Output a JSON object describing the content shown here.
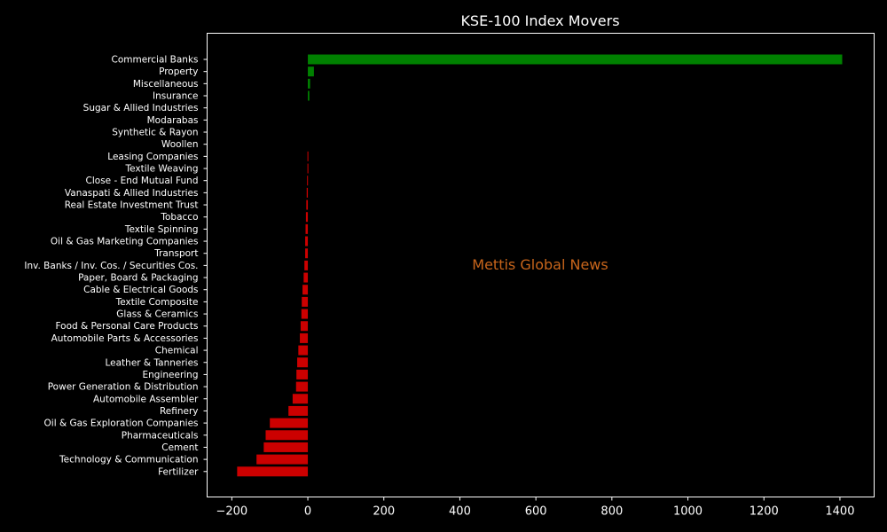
{
  "chart_data": {
    "type": "bar",
    "orientation": "horizontal",
    "title": "KSE-100 Index Movers",
    "watermark": "Mettis Global News",
    "xlabel": "",
    "ylabel": "",
    "xlim": [
      -265,
      1490
    ],
    "xticks": [
      -200,
      0,
      200,
      400,
      600,
      800,
      1000,
      1200,
      1400
    ],
    "xtick_labels": [
      "−200",
      "0",
      "200",
      "400",
      "600",
      "800",
      "1000",
      "1200",
      "1400"
    ],
    "grid": false,
    "legend": "none",
    "colors": {
      "positive": "#008000",
      "negative": "#cc0000",
      "background": "#000000",
      "text": "#ffffff",
      "watermark": "#c8651b"
    },
    "categories": [
      "Commercial Banks",
      "Property",
      "Miscellaneous",
      "Insurance",
      "Sugar & Allied Industries",
      "Modarabas",
      "Synthetic & Rayon",
      "Woollen",
      "Leasing Companies",
      "Textile Weaving",
      "Close - End Mutual Fund",
      "Vanaspati & Allied Industries",
      "Real Estate Investment Trust",
      "Tobacco",
      "Textile Spinning",
      "Oil & Gas Marketing Companies",
      "Transport",
      "Inv. Banks / Inv. Cos. / Securities Cos.",
      "Paper, Board & Packaging",
      "Cable & Electrical Goods",
      "Textile Composite",
      "Glass & Ceramics",
      "Food & Personal Care Products",
      "Automobile Parts & Accessories",
      "Chemical",
      "Leather & Tanneries",
      "Engineering",
      "Power Generation & Distribution",
      "Automobile Assembler",
      "Refinery",
      "Oil & Gas Exploration Companies",
      "Pharmaceuticals",
      "Cement",
      "Technology & Communication",
      "Fertilizer"
    ],
    "values": [
      1406,
      16,
      6,
      4,
      0,
      0,
      0,
      0,
      -1,
      -1,
      -2,
      -3,
      -4,
      -5,
      -6,
      -7,
      -7,
      -9,
      -11,
      -14,
      -16,
      -17,
      -19,
      -21,
      -25,
      -28,
      -30,
      -31,
      -40,
      -51,
      -100,
      -111,
      -116,
      -135,
      -186
    ]
  }
}
